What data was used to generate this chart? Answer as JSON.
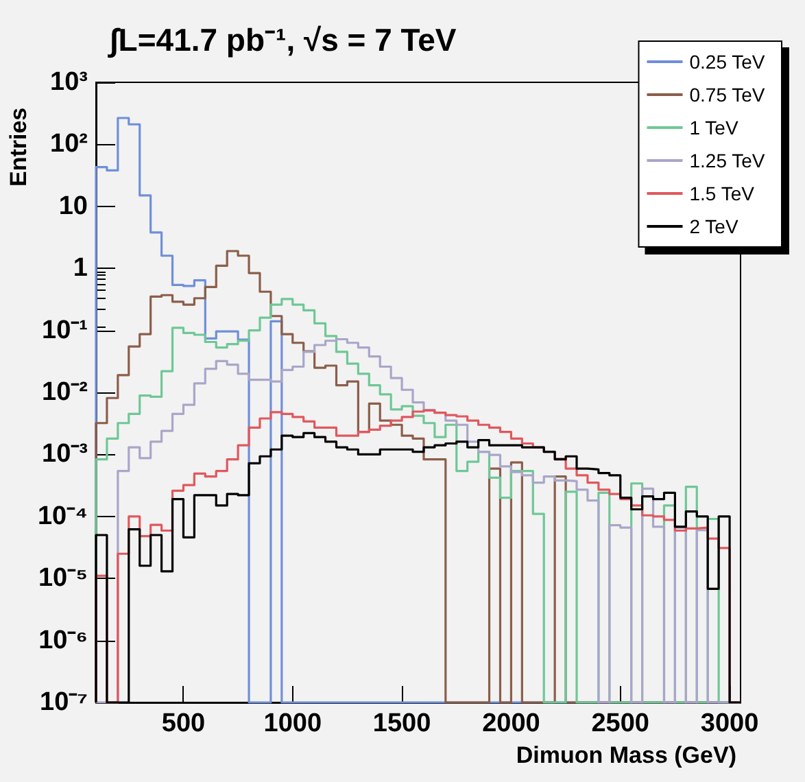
{
  "chart_data": {
    "type": "histogram",
    "title": "∫L=41.7 pb⁻¹, √s = 7 TeV",
    "xlabel": "Dimuon Mass (GeV)",
    "ylabel": "Entries",
    "bins": [
      100,
      150,
      200,
      250,
      300,
      350,
      400,
      450,
      500,
      550,
      600,
      650,
      700,
      750,
      800,
      850,
      900,
      950,
      1000,
      1050,
      1100,
      1150,
      1200,
      1250,
      1300,
      1350,
      1400,
      1450,
      1500,
      1550,
      1600,
      1650,
      1700,
      1750,
      1800,
      1850,
      1900,
      1950,
      2000,
      2050,
      2100,
      2150,
      2200,
      2250,
      2300,
      2350,
      2400,
      2450,
      2500,
      2550,
      2600,
      2650,
      2700,
      2750,
      2800,
      2850,
      2900,
      2950,
      3000,
      3050
    ],
    "series": [
      {
        "name": "0.25 TeV",
        "color": "#6f8fd8",
        "values": [
          43,
          38,
          266,
          210,
          15,
          3.8,
          1.6,
          0.54,
          0.52,
          0.64,
          0.074,
          0.096,
          0.096,
          0.071,
          null,
          null,
          0.14,
          null,
          null,
          null,
          null,
          null,
          null,
          null,
          null,
          null,
          null,
          null,
          null,
          null,
          null,
          null,
          null,
          null,
          null,
          null,
          null,
          null,
          null,
          null,
          null,
          null,
          null,
          null,
          null,
          null,
          null,
          null,
          null,
          null,
          null,
          null,
          null,
          null,
          null,
          null,
          null,
          null,
          null
        ]
      },
      {
        "name": "0.75 TeV",
        "color": "#8b5e4a",
        "values": [
          0.0032,
          0.0081,
          0.019,
          0.055,
          0.087,
          0.35,
          0.37,
          0.29,
          0.26,
          0.33,
          0.5,
          1.1,
          1.9,
          1.6,
          0.84,
          0.42,
          0.17,
          0.087,
          0.063,
          0.046,
          0.025,
          0.027,
          0.013,
          0.015,
          0.0023,
          0.0066,
          0.0035,
          0.003,
          0.002,
          0.0018,
          0.00083,
          0.00083,
          null,
          null,
          null,
          null,
          0.00059,
          null,
          0.00074,
          null,
          null,
          null,
          0.00044,
          null,
          null,
          null,
          null,
          null,
          null,
          null,
          null,
          null,
          null,
          null,
          null,
          null,
          null,
          null,
          null
        ]
      },
      {
        "name": "1 TeV",
        "color": "#6fc796",
        "values": [
          0.00083,
          0.0018,
          0.0032,
          0.0045,
          0.0089,
          0.0085,
          0.022,
          0.11,
          0.091,
          0.085,
          0.065,
          0.053,
          0.06,
          0.068,
          0.1,
          0.16,
          0.26,
          0.32,
          0.26,
          0.21,
          0.13,
          0.081,
          0.045,
          0.029,
          0.02,
          0.013,
          0.0093,
          0.0053,
          0.006,
          0.0042,
          0.0032,
          0.0019,
          0.003,
          0.00054,
          0.00076,
          0.0011,
          0.00042,
          0.0002,
          0.00054,
          0.00054,
          0.00011,
          null,
          null,
          0.00025,
          null,
          null,
          0.00024,
          null,
          null,
          0.00034,
          null,
          null,
          0.00015,
          null,
          0.0003,
          null,
          9.1e-05,
          null,
          null
        ]
      },
      {
        "name": "1.25 TeV",
        "color": "#a9a6c9",
        "values": [
          null,
          null,
          0.00054,
          0.0013,
          0.00087,
          0.0016,
          0.0024,
          0.0045,
          0.0063,
          0.014,
          0.024,
          0.032,
          0.028,
          0.02,
          0.016,
          0.016,
          0.015,
          0.023,
          0.026,
          0.045,
          0.058,
          0.068,
          0.072,
          0.063,
          0.053,
          0.038,
          0.026,
          0.017,
          0.011,
          0.0069,
          0.0052,
          0.0047,
          0.0035,
          0.003,
          0.0016,
          0.0011,
          0.00098,
          0.00064,
          0.00052,
          0.00046,
          0.00035,
          0.00044,
          0.00038,
          0.00037,
          0.00027,
          0.00018,
          null,
          7.2e-05,
          6.6e-05,
          null,
          0.00028,
          6.8e-05,
          null,
          6.6e-05,
          null,
          6e-05,
          null,
          null,
          null
        ]
      },
      {
        "name": "1.5 TeV",
        "color": "#e0585e",
        "values": [
          1.1e-05,
          null,
          2.5e-05,
          0.0001,
          4.8e-05,
          7.3e-05,
          5.9e-05,
          0.00026,
          0.00032,
          0.00049,
          0.00044,
          0.00054,
          0.00083,
          0.0014,
          0.0027,
          0.0038,
          0.0048,
          0.0045,
          0.004,
          0.0034,
          0.0027,
          0.0027,
          0.002,
          0.002,
          0.0023,
          0.0025,
          0.0029,
          0.0035,
          0.004,
          0.0049,
          0.0051,
          0.0047,
          0.0043,
          0.0041,
          0.0035,
          0.003,
          0.0027,
          0.0023,
          0.0018,
          0.0015,
          0.0013,
          0.0011,
          0.00085,
          0.00059,
          0.00046,
          0.00035,
          0.00027,
          0.00023,
          0.00019,
          0.00015,
          0.000104,
          0.0001,
          8.8e-05,
          5.9e-05,
          6.4e-05,
          6.6e-05,
          4.4e-05,
          3.1e-05,
          null
        ]
      },
      {
        "name": "2 TeV",
        "color": "#000000",
        "values": [
          5e-05,
          null,
          null,
          6.2e-05,
          1.6e-05,
          5e-05,
          1.3e-05,
          0.00019,
          4.6e-05,
          0.00022,
          0.00022,
          0.00015,
          0.00023,
          0.00022,
          0.00072,
          0.00093,
          0.0012,
          0.002,
          0.0019,
          0.0022,
          0.0019,
          0.0016,
          0.0013,
          0.0012,
          0.001,
          0.001,
          0.0012,
          0.0012,
          0.0012,
          0.0011,
          0.0013,
          0.0014,
          0.0015,
          0.0016,
          0.0013,
          0.0017,
          0.0014,
          0.0014,
          0.0014,
          0.0013,
          0.0013,
          0.0011,
          0.00083,
          0.00093,
          0.00059,
          0.00057,
          0.0005,
          0.00046,
          0.0002,
          0.00013,
          0.00021,
          0.00019,
          0.00024,
          6.8e-05,
          0.00012,
          0.0001,
          6.8e-06,
          0.0001,
          null
        ]
      }
    ],
    "xlim": [
      100,
      3050
    ],
    "xticks": [
      500,
      1000,
      1500,
      2000,
      2500,
      3000
    ],
    "ylim": [
      1e-07,
      1000
    ],
    "log": "y",
    "yticks": [
      {
        "value": 1e-07,
        "label": "10⁻⁷"
      },
      {
        "value": 1e-06,
        "label": "10⁻⁶"
      },
      {
        "value": 1e-05,
        "label": "10⁻⁵"
      },
      {
        "value": 0.0001,
        "label": "10⁻⁴"
      },
      {
        "value": 0.001,
        "label": "10⁻³"
      },
      {
        "value": 0.01,
        "label": "10⁻²"
      },
      {
        "value": 0.1,
        "label": "10⁻¹"
      },
      1,
      10,
      {
        "value": 100,
        "label": "10²"
      },
      {
        "value": 1000,
        "label": "10³"
      }
    ],
    "grid": false,
    "legend": "top right",
    "marker": "none"
  }
}
